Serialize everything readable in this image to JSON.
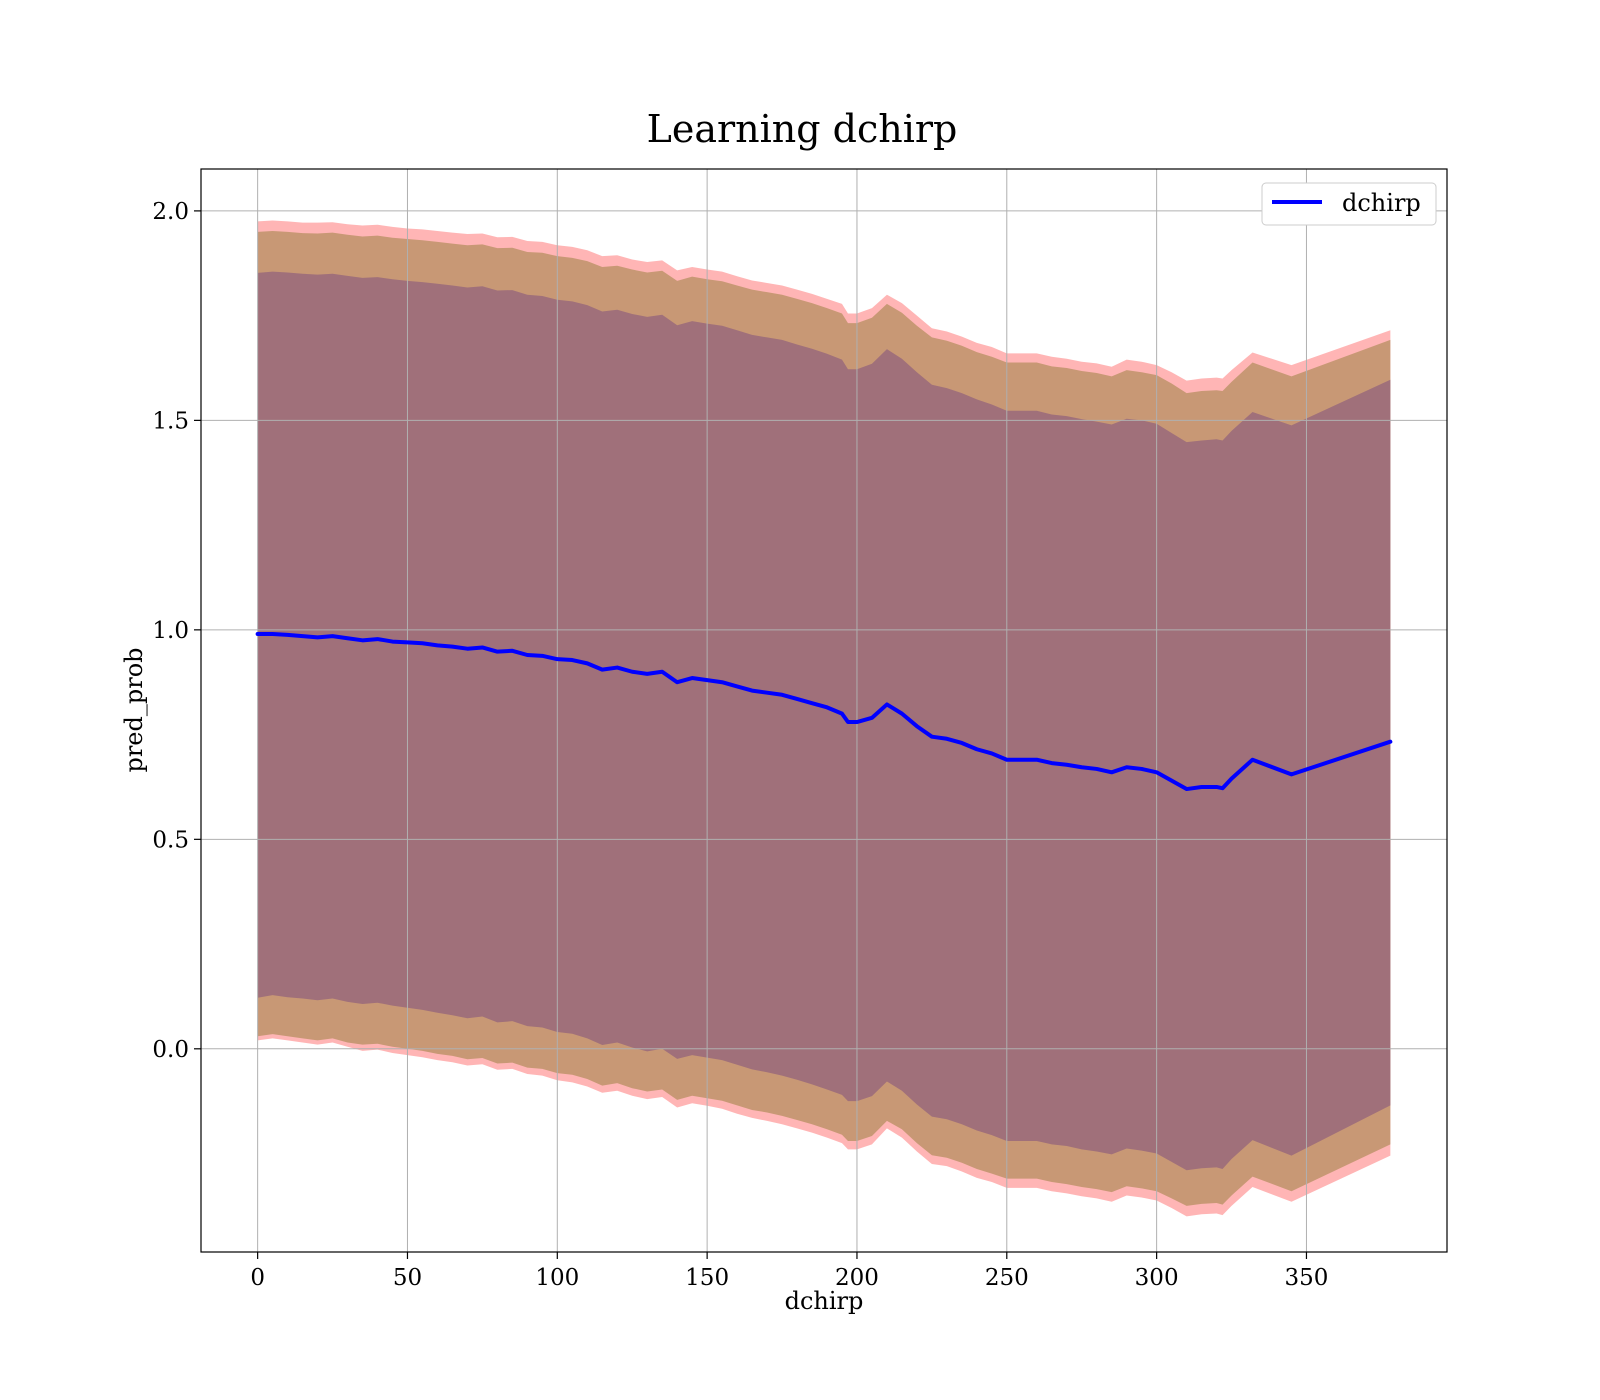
{
  "chart_data": {
    "type": "line",
    "title": "Learning dchirp",
    "xlabel": "dchirp",
    "ylabel": "pred_prob",
    "xlim": [
      -18.9,
      396.9
    ],
    "ylim": [
      -0.485,
      2.1
    ],
    "xticks": [
      0,
      50,
      100,
      150,
      200,
      250,
      300,
      350
    ],
    "xtick_labels": [
      "0",
      "50",
      "100",
      "150",
      "200",
      "250",
      "300",
      "350"
    ],
    "yticks": [
      0.0,
      0.5,
      1.0,
      1.5,
      2.0
    ],
    "ytick_labels": [
      "0.0",
      "0.5",
      "1.0",
      "1.5",
      "2.0"
    ],
    "grid": true,
    "legend_position": "top-right",
    "series": [
      {
        "name": "dchirp",
        "color": "#0000ff",
        "x": [
          0,
          5,
          10,
          15,
          20,
          25,
          30,
          35,
          40,
          45,
          50,
          55,
          60,
          65,
          70,
          75,
          80,
          85,
          90,
          95,
          100,
          105,
          110,
          115,
          120,
          125,
          130,
          135,
          140,
          145,
          150,
          155,
          160,
          165,
          170,
          175,
          180,
          185,
          190,
          195,
          197,
          200,
          205,
          210,
          215,
          220,
          225,
          230,
          235,
          240,
          245,
          250,
          255,
          260,
          265,
          270,
          275,
          280,
          285,
          290,
          295,
          300,
          305,
          310,
          315,
          320,
          322,
          325,
          332,
          345,
          378
        ],
        "y": [
          0.99,
          0.99,
          0.988,
          0.985,
          0.982,
          0.985,
          0.98,
          0.975,
          0.978,
          0.972,
          0.97,
          0.968,
          0.963,
          0.96,
          0.955,
          0.958,
          0.948,
          0.95,
          0.94,
          0.938,
          0.93,
          0.928,
          0.92,
          0.905,
          0.91,
          0.9,
          0.895,
          0.9,
          0.875,
          0.885,
          0.88,
          0.875,
          0.865,
          0.855,
          0.85,
          0.845,
          0.835,
          0.825,
          0.815,
          0.8,
          0.78,
          0.78,
          0.79,
          0.822,
          0.8,
          0.77,
          0.745,
          0.74,
          0.73,
          0.715,
          0.705,
          0.69,
          0.69,
          0.69,
          0.682,
          0.678,
          0.672,
          0.668,
          0.66,
          0.672,
          0.668,
          0.66,
          0.64,
          0.62,
          0.625,
          0.625,
          0.622,
          0.645,
          0.69,
          0.655,
          0.733
        ]
      }
    ],
    "bands": [
      {
        "color": "#ff7878",
        "opacity": 0.55,
        "x": [
          0,
          5,
          10,
          15,
          20,
          25,
          30,
          35,
          40,
          45,
          50,
          55,
          60,
          65,
          70,
          75,
          80,
          85,
          90,
          95,
          100,
          105,
          110,
          115,
          120,
          125,
          130,
          135,
          140,
          145,
          150,
          155,
          160,
          165,
          170,
          175,
          180,
          185,
          190,
          195,
          197,
          200,
          205,
          210,
          215,
          220,
          225,
          230,
          235,
          240,
          245,
          250,
          255,
          260,
          265,
          270,
          275,
          280,
          285,
          290,
          295,
          300,
          305,
          310,
          315,
          320,
          322,
          325,
          332,
          345,
          378
        ],
        "upper": [
          1.975,
          1.977,
          1.975,
          1.972,
          1.972,
          1.973,
          1.968,
          1.965,
          1.967,
          1.962,
          1.958,
          1.956,
          1.952,
          1.948,
          1.945,
          1.946,
          1.937,
          1.938,
          1.928,
          1.926,
          1.918,
          1.914,
          1.906,
          1.892,
          1.894,
          1.884,
          1.878,
          1.882,
          1.858,
          1.866,
          1.86,
          1.855,
          1.844,
          1.834,
          1.828,
          1.822,
          1.812,
          1.802,
          1.79,
          1.778,
          1.755,
          1.755,
          1.768,
          1.8,
          1.78,
          1.75,
          1.72,
          1.712,
          1.7,
          1.685,
          1.675,
          1.66,
          1.66,
          1.66,
          1.652,
          1.647,
          1.64,
          1.636,
          1.628,
          1.645,
          1.64,
          1.632,
          1.615,
          1.595,
          1.6,
          1.602,
          1.6,
          1.62,
          1.662,
          1.632,
          1.715
        ],
        "lower": [
          0.02,
          0.025,
          0.02,
          0.015,
          0.01,
          0.015,
          0.005,
          -0.005,
          -0.002,
          -0.01,
          -0.015,
          -0.02,
          -0.027,
          -0.032,
          -0.04,
          -0.037,
          -0.05,
          -0.048,
          -0.06,
          -0.064,
          -0.075,
          -0.08,
          -0.09,
          -0.105,
          -0.1,
          -0.112,
          -0.12,
          -0.115,
          -0.14,
          -0.13,
          -0.136,
          -0.143,
          -0.155,
          -0.165,
          -0.172,
          -0.18,
          -0.19,
          -0.2,
          -0.212,
          -0.225,
          -0.24,
          -0.24,
          -0.228,
          -0.19,
          -0.212,
          -0.245,
          -0.275,
          -0.28,
          -0.293,
          -0.308,
          -0.318,
          -0.332,
          -0.332,
          -0.332,
          -0.34,
          -0.345,
          -0.352,
          -0.357,
          -0.365,
          -0.35,
          -0.355,
          -0.362,
          -0.38,
          -0.4,
          -0.395,
          -0.393,
          -0.397,
          -0.375,
          -0.33,
          -0.365,
          -0.255
        ]
      },
      {
        "color": "#b08c5a",
        "opacity": 0.7,
        "x": [
          0,
          5,
          10,
          15,
          20,
          25,
          30,
          35,
          40,
          45,
          50,
          55,
          60,
          65,
          70,
          75,
          80,
          85,
          90,
          95,
          100,
          105,
          110,
          115,
          120,
          125,
          130,
          135,
          140,
          145,
          150,
          155,
          160,
          165,
          170,
          175,
          180,
          185,
          190,
          195,
          197,
          200,
          205,
          210,
          215,
          220,
          225,
          230,
          235,
          240,
          245,
          250,
          255,
          260,
          265,
          270,
          275,
          280,
          285,
          290,
          295,
          300,
          305,
          310,
          315,
          320,
          322,
          325,
          332,
          345,
          378
        ],
        "upper": [
          1.95,
          1.952,
          1.95,
          1.947,
          1.946,
          1.948,
          1.943,
          1.939,
          1.941,
          1.936,
          1.933,
          1.93,
          1.926,
          1.922,
          1.918,
          1.92,
          1.911,
          1.912,
          1.902,
          1.9,
          1.892,
          1.888,
          1.88,
          1.866,
          1.869,
          1.86,
          1.853,
          1.857,
          1.833,
          1.843,
          1.837,
          1.832,
          1.822,
          1.812,
          1.806,
          1.8,
          1.79,
          1.78,
          1.768,
          1.755,
          1.732,
          1.732,
          1.745,
          1.778,
          1.757,
          1.726,
          1.698,
          1.69,
          1.678,
          1.663,
          1.652,
          1.638,
          1.638,
          1.638,
          1.629,
          1.625,
          1.618,
          1.613,
          1.605,
          1.62,
          1.615,
          1.608,
          1.588,
          1.565,
          1.57,
          1.572,
          1.57,
          1.592,
          1.638,
          1.605,
          1.692
        ],
        "lower": [
          0.03,
          0.035,
          0.03,
          0.025,
          0.02,
          0.025,
          0.015,
          0.01,
          0.012,
          0.005,
          0.0,
          -0.005,
          -0.012,
          -0.017,
          -0.025,
          -0.022,
          -0.035,
          -0.033,
          -0.045,
          -0.048,
          -0.058,
          -0.062,
          -0.072,
          -0.088,
          -0.082,
          -0.094,
          -0.102,
          -0.097,
          -0.122,
          -0.112,
          -0.118,
          -0.124,
          -0.135,
          -0.146,
          -0.152,
          -0.16,
          -0.17,
          -0.18,
          -0.192,
          -0.205,
          -0.22,
          -0.22,
          -0.208,
          -0.172,
          -0.192,
          -0.225,
          -0.254,
          -0.26,
          -0.272,
          -0.287,
          -0.298,
          -0.31,
          -0.31,
          -0.31,
          -0.318,
          -0.323,
          -0.33,
          -0.335,
          -0.342,
          -0.328,
          -0.333,
          -0.34,
          -0.357,
          -0.375,
          -0.37,
          -0.368,
          -0.372,
          -0.35,
          -0.305,
          -0.34,
          -0.228
        ]
      },
      {
        "color": "#a0707a",
        "opacity": 1.0,
        "x": [
          0,
          5,
          10,
          15,
          20,
          25,
          30,
          35,
          40,
          45,
          50,
          55,
          60,
          65,
          70,
          75,
          80,
          85,
          90,
          95,
          100,
          105,
          110,
          115,
          120,
          125,
          130,
          135,
          140,
          145,
          150,
          155,
          160,
          165,
          170,
          175,
          180,
          185,
          190,
          195,
          197,
          200,
          205,
          210,
          215,
          220,
          225,
          230,
          235,
          240,
          245,
          250,
          255,
          260,
          265,
          270,
          275,
          280,
          285,
          290,
          295,
          300,
          305,
          310,
          315,
          320,
          322,
          325,
          332,
          345,
          378
        ],
        "upper": [
          1.852,
          1.855,
          1.853,
          1.85,
          1.848,
          1.85,
          1.845,
          1.84,
          1.842,
          1.837,
          1.833,
          1.83,
          1.826,
          1.822,
          1.817,
          1.82,
          1.81,
          1.811,
          1.8,
          1.797,
          1.788,
          1.784,
          1.775,
          1.76,
          1.764,
          1.754,
          1.747,
          1.752,
          1.727,
          1.737,
          1.731,
          1.726,
          1.715,
          1.704,
          1.698,
          1.692,
          1.681,
          1.671,
          1.659,
          1.645,
          1.622,
          1.622,
          1.635,
          1.67,
          1.647,
          1.615,
          1.585,
          1.577,
          1.565,
          1.55,
          1.538,
          1.523,
          1.523,
          1.523,
          1.514,
          1.51,
          1.503,
          1.497,
          1.49,
          1.504,
          1.5,
          1.492,
          1.47,
          1.448,
          1.452,
          1.455,
          1.452,
          1.475,
          1.52,
          1.488,
          1.597
        ],
        "lower": [
          0.122,
          0.128,
          0.123,
          0.12,
          0.116,
          0.12,
          0.112,
          0.107,
          0.11,
          0.103,
          0.098,
          0.093,
          0.086,
          0.08,
          0.073,
          0.077,
          0.063,
          0.066,
          0.054,
          0.051,
          0.04,
          0.036,
          0.025,
          0.009,
          0.015,
          0.003,
          -0.006,
          0.0,
          -0.024,
          -0.015,
          -0.021,
          -0.027,
          -0.038,
          -0.049,
          -0.056,
          -0.064,
          -0.074,
          -0.085,
          -0.097,
          -0.11,
          -0.125,
          -0.125,
          -0.113,
          -0.078,
          -0.1,
          -0.133,
          -0.162,
          -0.168,
          -0.18,
          -0.195,
          -0.206,
          -0.22,
          -0.22,
          -0.22,
          -0.228,
          -0.232,
          -0.24,
          -0.245,
          -0.252,
          -0.238,
          -0.243,
          -0.25,
          -0.27,
          -0.29,
          -0.285,
          -0.283,
          -0.287,
          -0.263,
          -0.218,
          -0.255,
          -0.135
        ]
      }
    ]
  }
}
